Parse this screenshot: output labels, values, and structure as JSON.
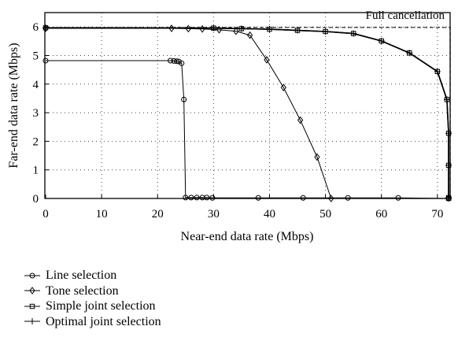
{
  "chart_data": {
    "type": "line",
    "xlabel": "Near-end data rate (Mbps)",
    "ylabel": "Far-end data rate (Mbps)",
    "xlim": [
      0,
      73
    ],
    "ylim": [
      0,
      6.3
    ],
    "xticks": [
      "0",
      "10",
      "20",
      "30",
      "40",
      "50",
      "60",
      "70"
    ],
    "yticks": [
      "0",
      "1",
      "2",
      "3",
      "4",
      "5",
      "6"
    ],
    "grid": "dotted",
    "annotation": "Full cancellation",
    "full_cancellation": {
      "x": [
        0,
        72.3,
        72.3
      ],
      "y": [
        5.98,
        5.98,
        0
      ]
    },
    "series": [
      {
        "name": "Line selection",
        "marker": "circle",
        "x": [
          0,
          22.3,
          22.9,
          23.4,
          23.8,
          24.3,
          24.7,
          25.0,
          26.0,
          27.0,
          28.0,
          28.8,
          29.8,
          38.0,
          46.0,
          54.0,
          63.0,
          72.0
        ],
        "y": [
          4.82,
          4.82,
          4.81,
          4.8,
          4.79,
          4.73,
          3.46,
          0.03,
          0.03,
          0.03,
          0.03,
          0.03,
          0.02,
          0.02,
          0.02,
          0.02,
          0.02,
          0.0
        ]
      },
      {
        "name": "Tone selection",
        "marker": "diamond",
        "x": [
          0,
          22.5,
          25.5,
          28.0,
          31.0,
          34.0,
          36.5,
          39.5,
          42.5,
          45.5,
          48.5,
          51.0
        ],
        "y": [
          5.95,
          5.95,
          5.94,
          5.93,
          5.9,
          5.85,
          5.71,
          4.85,
          3.88,
          2.74,
          1.45,
          0.0
        ]
      },
      {
        "name": "Simple joint selection",
        "marker": "square",
        "x": [
          0,
          30.0,
          35.0,
          40.0,
          45.0,
          50.0,
          55.0,
          60.0,
          65.0,
          70.0,
          71.7,
          72.0,
          72.0,
          72.0,
          72.0
        ],
        "y": [
          5.97,
          5.96,
          5.94,
          5.92,
          5.88,
          5.84,
          5.77,
          5.51,
          5.09,
          4.44,
          3.46,
          2.28,
          1.16,
          0.03,
          0.0
        ]
      },
      {
        "name": "Optimal joint selection",
        "marker": "plus",
        "x": [
          0,
          30.0,
          35.0,
          40.0,
          45.0,
          50.0,
          55.0,
          60.0,
          65.0,
          70.0,
          71.7,
          72.0,
          72.0,
          72.0,
          72.0
        ],
        "y": [
          5.97,
          5.96,
          5.94,
          5.92,
          5.88,
          5.84,
          5.77,
          5.51,
          5.09,
          4.44,
          3.46,
          2.28,
          1.16,
          0.03,
          0.0
        ]
      }
    ]
  }
}
